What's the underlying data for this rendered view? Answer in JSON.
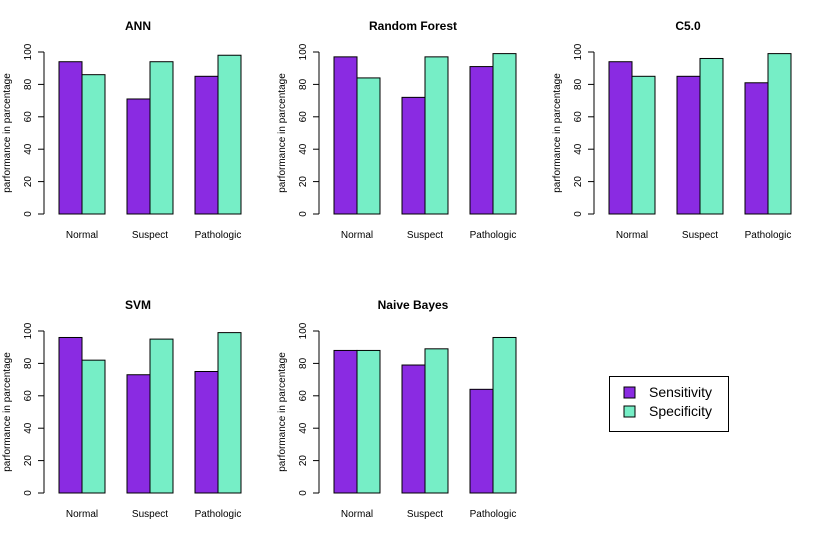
{
  "colors": {
    "sensitivity": "#8A2BE2",
    "specificity": "#76EEC6",
    "stroke": "#000000"
  },
  "legend": {
    "items": [
      "Sensitivity",
      "Specificity"
    ],
    "placement": "bottom-right"
  },
  "chart_data": [
    {
      "type": "bar",
      "title": "ANN",
      "ylabel": "parformance in parcentage",
      "categories": [
        "Normal",
        "Suspect",
        "Pathologic"
      ],
      "series": [
        {
          "name": "Sensitivity",
          "values": [
            94,
            71,
            85
          ]
        },
        {
          "name": "Specificity",
          "values": [
            86,
            94,
            98
          ]
        }
      ],
      "ylim": [
        0,
        100
      ],
      "yticks": [
        "0",
        "20",
        "40",
        "60",
        "80",
        "100"
      ]
    },
    {
      "type": "bar",
      "title": "Random Forest",
      "ylabel": "parformance in parcentage",
      "categories": [
        "Normal",
        "Suspect",
        "Pathologic"
      ],
      "series": [
        {
          "name": "Sensitivity",
          "values": [
            97,
            72,
            91
          ]
        },
        {
          "name": "Specificity",
          "values": [
            84,
            97,
            99
          ]
        }
      ],
      "ylim": [
        0,
        100
      ],
      "yticks": [
        "0",
        "20",
        "40",
        "60",
        "80",
        "100"
      ]
    },
    {
      "type": "bar",
      "title": "C5.0",
      "ylabel": "parformance in parcentage",
      "categories": [
        "Normal",
        "Suspect",
        "Pathologic"
      ],
      "series": [
        {
          "name": "Sensitivity",
          "values": [
            94,
            85,
            81
          ]
        },
        {
          "name": "Specificity",
          "values": [
            85,
            96,
            99
          ]
        }
      ],
      "ylim": [
        0,
        100
      ],
      "yticks": [
        "0",
        "20",
        "40",
        "60",
        "80",
        "100"
      ]
    },
    {
      "type": "bar",
      "title": "SVM",
      "ylabel": "parformance in parcentage",
      "categories": [
        "Normal",
        "Suspect",
        "Pathologic"
      ],
      "series": [
        {
          "name": "Sensitivity",
          "values": [
            96,
            73,
            75
          ]
        },
        {
          "name": "Specificity",
          "values": [
            82,
            95,
            99
          ]
        }
      ],
      "ylim": [
        0,
        100
      ],
      "yticks": [
        "0",
        "20",
        "40",
        "60",
        "80",
        "100"
      ]
    },
    {
      "type": "bar",
      "title": "Naive Bayes",
      "ylabel": "parformance in parcentage",
      "categories": [
        "Normal",
        "Suspect",
        "Pathologic"
      ],
      "series": [
        {
          "name": "Sensitivity",
          "values": [
            88,
            79,
            64
          ]
        },
        {
          "name": "Specificity",
          "values": [
            88,
            89,
            96
          ]
        }
      ],
      "ylim": [
        0,
        100
      ],
      "yticks": [
        "0",
        "20",
        "40",
        "60",
        "80",
        "100"
      ]
    }
  ]
}
